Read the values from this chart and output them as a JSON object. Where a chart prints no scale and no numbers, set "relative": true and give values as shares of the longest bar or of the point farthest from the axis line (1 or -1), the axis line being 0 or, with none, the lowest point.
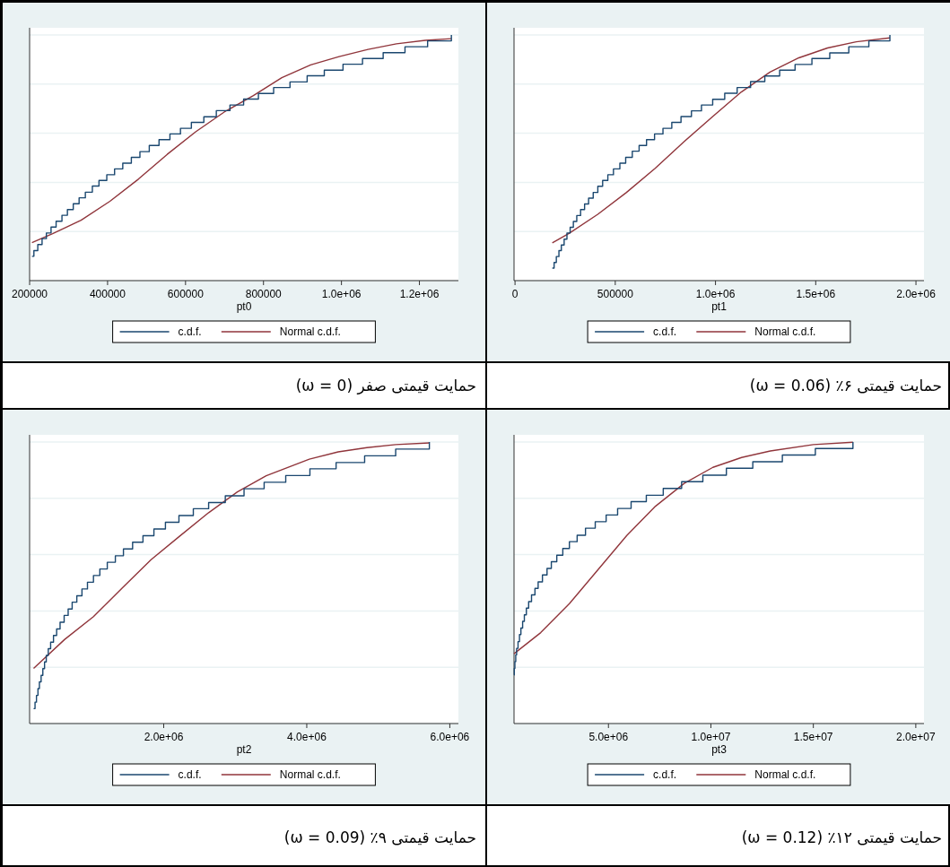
{
  "chart_data": [
    {
      "type": "step",
      "title": "حمایت قیمتی صفر (ω = 0)",
      "xlabel": "pt0",
      "relative": true,
      "grid": "y",
      "legend": "bottom",
      "tick_labels": "x",
      "xlim": [
        200000,
        1300000
      ],
      "xticks": [
        200000,
        400000,
        600000,
        800000,
        {
          "value": 1000000,
          "label": "1.0e+06"
        },
        {
          "value": 1200000,
          "label": "1.2e+06"
        }
      ],
      "series": [
        {
          "name": "c.d.f.",
          "type": "step",
          "color": "#1a476f",
          "x": [
            206000,
            211000,
            221000,
            232000,
            243000,
            255000,
            268000,
            283000,
            297000,
            312000,
            327000,
            343000,
            361000,
            378000,
            398000,
            418000,
            439000,
            461000,
            483000,
            507000,
            532000,
            560000,
            587000,
            615000,
            647000,
            679000,
            714000,
            749000,
            787000,
            826000,
            868000,
            912000,
            956000,
            1004000,
            1054000,
            1107000,
            1163000,
            1221000,
            1282000
          ],
          "values": [
            0.099,
            0.122,
            0.147,
            0.171,
            0.194,
            0.218,
            0.242,
            0.266,
            0.289,
            0.313,
            0.337,
            0.36,
            0.385,
            0.408,
            0.431,
            0.455,
            0.478,
            0.502,
            0.525,
            0.55,
            0.574,
            0.597,
            0.62,
            0.644,
            0.667,
            0.692,
            0.715,
            0.739,
            0.762,
            0.786,
            0.809,
            0.834,
            0.857,
            0.881,
            0.904,
            0.928,
            0.952,
            0.976,
            1
          ]
        },
        {
          "name": "Normal c.d.f.",
          "type": "line",
          "color": "#90353b",
          "x": [
            206000,
            259000,
            332000,
            406000,
            479000,
            553000,
            626000,
            700000,
            774000,
            847000,
            921000,
            994000,
            1068000,
            1141000,
            1215000,
            1282000
          ],
          "values": [
            0.155,
            0.191,
            0.246,
            0.323,
            0.413,
            0.514,
            0.606,
            0.687,
            0.753,
            0.826,
            0.878,
            0.912,
            0.941,
            0.964,
            0.978,
            0.985
          ]
        }
      ]
    },
    {
      "type": "step",
      "title": "حمایت قیمتی ۶٪ (ω = 0.06)",
      "xlabel": "pt1",
      "relative": true,
      "grid": "y",
      "legend": "bottom",
      "tick_labels": "x",
      "xlim": [
        -5000,
        2040000
      ],
      "xticks": [
        0,
        500000,
        {
          "value": 1000000,
          "label": "1.0e+06"
        },
        {
          "value": 1500000,
          "label": "1.5e+06"
        },
        {
          "value": 2000000,
          "label": "2.0e+06"
        }
      ],
      "series": [
        {
          "name": "c.d.f.",
          "type": "step",
          "color": "#1a476f",
          "x": [
            186000,
            195000,
            206000,
            219000,
            231000,
            245000,
            259000,
            275000,
            291000,
            308000,
            327000,
            347000,
            367000,
            390000,
            413000,
            437000,
            463000,
            491000,
            523000,
            552000,
            585000,
            619000,
            656000,
            696000,
            738000,
            782000,
            828000,
            880000,
            930000,
            986000,
            1046000,
            1108000,
            1175000,
            1246000,
            1320000,
            1397000,
            1481000,
            1570000,
            1665000,
            1765000,
            1870000
          ],
          "values": [
            0.051,
            0.074,
            0.098,
            0.122,
            0.145,
            0.169,
            0.194,
            0.217,
            0.241,
            0.265,
            0.289,
            0.312,
            0.336,
            0.359,
            0.384,
            0.408,
            0.431,
            0.455,
            0.478,
            0.502,
            0.527,
            0.55,
            0.574,
            0.597,
            0.62,
            0.644,
            0.668,
            0.691,
            0.715,
            0.738,
            0.763,
            0.786,
            0.81,
            0.833,
            0.857,
            0.88,
            0.904,
            0.927,
            0.952,
            0.976,
            1
          ]
        },
        {
          "name": "Normal c.d.f.",
          "type": "line",
          "color": "#90353b",
          "x": [
            186000,
            269000,
            413000,
            556000,
            699000,
            842000,
            986000,
            1129000,
            1272000,
            1416000,
            1559000,
            1702000,
            1870000
          ],
          "values": [
            0.154,
            0.192,
            0.27,
            0.359,
            0.457,
            0.565,
            0.668,
            0.768,
            0.849,
            0.907,
            0.947,
            0.972,
            0.988
          ]
        }
      ]
    },
    {
      "type": "step",
      "title": "حمایت قیمتی ۹٪ (ω = 0.09)",
      "xlabel": "pt2",
      "relative": true,
      "grid": "y",
      "legend": "bottom",
      "tick_labels": "x",
      "xlim": [
        125000,
        6120000
      ],
      "xticks": [
        {
          "value": 2000000,
          "label": "2.0e+06"
        },
        {
          "value": 4000000,
          "label": "4.0e+06"
        },
        {
          "value": 6000000,
          "label": "6.0e+06"
        }
      ],
      "series": [
        {
          "name": "c.d.f.",
          "type": "step",
          "color": "#1a476f",
          "x": [
            181000,
            201000,
            221000,
            242000,
            262000,
            286000,
            310000,
            334000,
            358000,
            386000,
            419000,
            459000,
            503000,
            551000,
            608000,
            664000,
            720000,
            785000,
            857000,
            934000,
            1018000,
            1107000,
            1211000,
            1324000,
            1437000,
            1565000,
            1710000,
            1863000,
            2024000,
            2213000,
            2414000,
            2628000,
            2861000,
            3123000,
            3404000,
            3706000,
            4044000,
            4410000,
            4809000,
            5243000,
            5714000
          ],
          "values": [
            0.053,
            0.076,
            0.1,
            0.124,
            0.148,
            0.171,
            0.195,
            0.219,
            0.242,
            0.266,
            0.289,
            0.313,
            0.336,
            0.36,
            0.384,
            0.407,
            0.431,
            0.454,
            0.478,
            0.502,
            0.526,
            0.549,
            0.573,
            0.596,
            0.62,
            0.644,
            0.667,
            0.691,
            0.715,
            0.739,
            0.763,
            0.785,
            0.809,
            0.834,
            0.857,
            0.881,
            0.905,
            0.927,
            0.951,
            0.975,
            1
          ]
        },
        {
          "name": "Normal c.d.f.",
          "type": "line",
          "color": "#90353b",
          "x": [
            181000,
            616000,
            1018000,
            1421000,
            1823000,
            2225000,
            2628000,
            3030000,
            3433000,
            4036000,
            4439000,
            4841000,
            5243000,
            5714000
          ],
          "values": [
            0.196,
            0.299,
            0.38,
            0.482,
            0.582,
            0.666,
            0.749,
            0.823,
            0.88,
            0.939,
            0.965,
            0.98,
            0.991,
            0.997
          ]
        }
      ]
    },
    {
      "type": "step",
      "title": "حمایت قیمتی ۱۲٪ (ω = 0.12)",
      "xlabel": "pt3",
      "relative": true,
      "grid": "y",
      "legend": "bottom",
      "tick_labels": "x",
      "xlim": [
        392000,
        20400000
      ],
      "xticks": [
        {
          "value": 5000000,
          "label": "5.0e+06"
        },
        {
          "value": 10000000,
          "label": "1.0e+07"
        },
        {
          "value": 15000000,
          "label": "1.5e+07"
        },
        {
          "value": 20000000,
          "label": "2.0e+07"
        }
      ],
      "series": [
        {
          "name": "c.d.f.",
          "type": "step",
          "color": "#1a476f",
          "x": [
            392000,
            406000,
            434000,
            476000,
            518000,
            588000,
            658000,
            728000,
            812000,
            896000,
            994000,
            1106000,
            1246000,
            1414000,
            1569000,
            1779000,
            2003000,
            2213000,
            2479000,
            2773000,
            3095000,
            3473000,
            3880000,
            4356000,
            4888000,
            5448000,
            6106000,
            6849000,
            7675000,
            8572000,
            9608000,
            10756000,
            12045000,
            13488000,
            15098000,
            16933000
          ],
          "values": [
            0.173,
            0.196,
            0.22,
            0.244,
            0.267,
            0.291,
            0.316,
            0.339,
            0.363,
            0.386,
            0.41,
            0.433,
            0.457,
            0.48,
            0.503,
            0.528,
            0.551,
            0.575,
            0.598,
            0.622,
            0.646,
            0.669,
            0.694,
            0.717,
            0.741,
            0.764,
            0.788,
            0.811,
            0.835,
            0.859,
            0.882,
            0.907,
            0.93,
            0.954,
            0.977,
            1
          ]
        },
        {
          "name": "Normal c.d.f.",
          "type": "line",
          "color": "#90353b",
          "x": [
            392000,
            1695000,
            3095000,
            4496000,
            5896000,
            7297000,
            8698000,
            10098000,
            11499000,
            12899000,
            15000000,
            16933000
          ],
          "values": [
            0.248,
            0.323,
            0.426,
            0.547,
            0.668,
            0.772,
            0.853,
            0.91,
            0.945,
            0.968,
            0.991,
            0.999
          ]
        }
      ]
    }
  ]
}
